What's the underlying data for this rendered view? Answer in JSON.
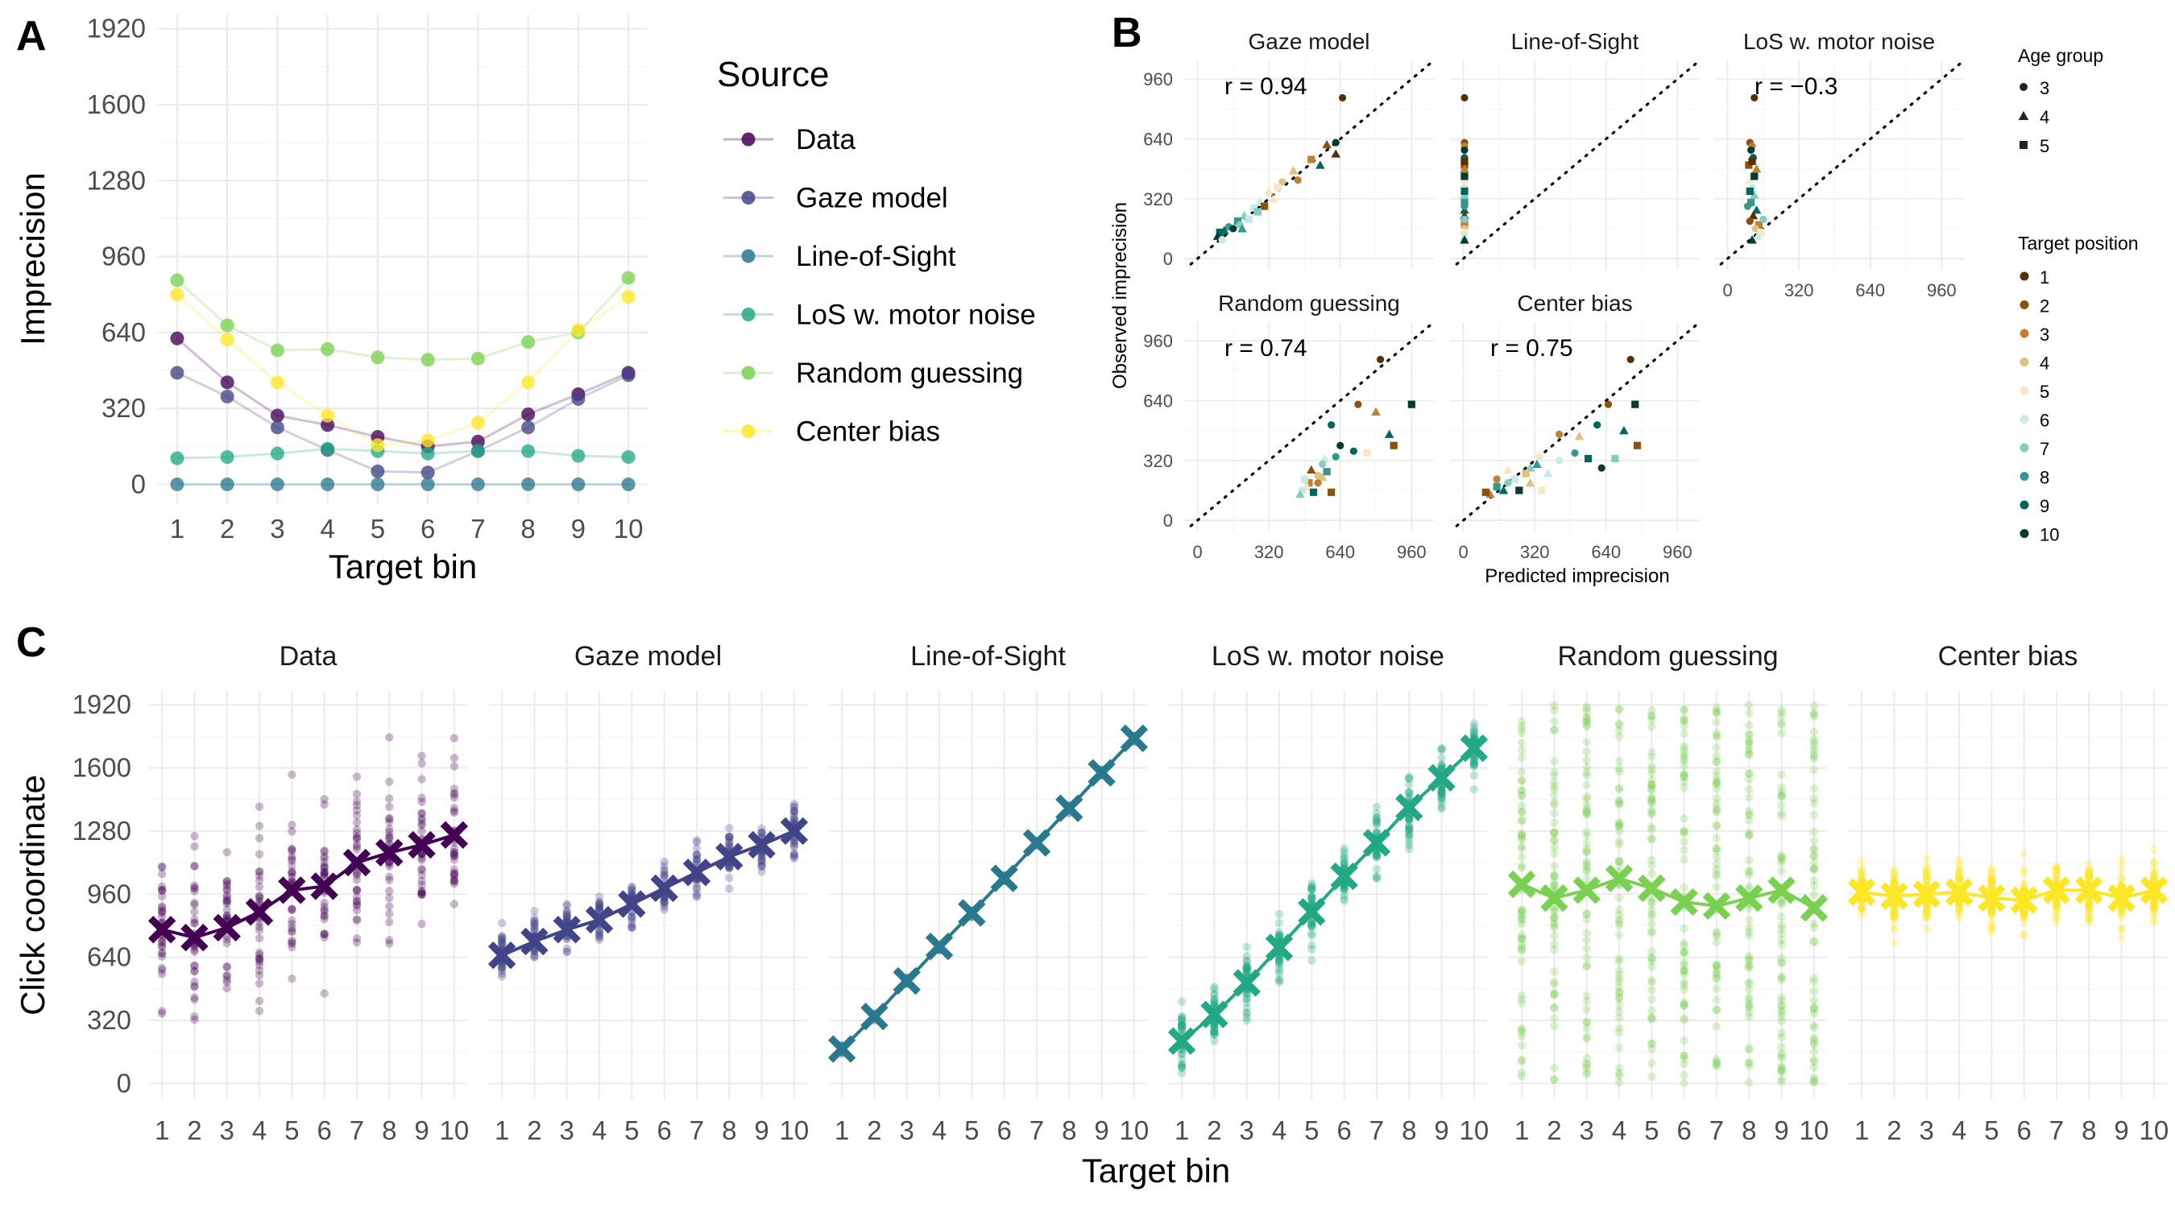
{
  "chart_data": [
    {
      "panel": "A",
      "type": "line",
      "xlabel": "Target bin",
      "ylabel": "Imprecision",
      "x": [
        1,
        2,
        3,
        4,
        5,
        6,
        7,
        8,
        9,
        10
      ],
      "yticks": [
        0,
        320,
        640,
        960,
        1280,
        1600,
        1920
      ],
      "ylim": [
        -80,
        1980
      ],
      "grid": true,
      "legend": {
        "title": "Source",
        "position": "right"
      },
      "series": [
        {
          "name": "Data",
          "color": "#440154",
          "values": [
            615,
            430,
            290,
            250,
            200,
            160,
            180,
            295,
            380,
            470
          ]
        },
        {
          "name": "Gaze model",
          "color": "#414487",
          "values": [
            470,
            370,
            240,
            145,
            55,
            50,
            140,
            240,
            360,
            460
          ]
        },
        {
          "name": "Line-of-Sight",
          "color": "#2a788e",
          "values": [
            0,
            0,
            0,
            0,
            0,
            0,
            0,
            0,
            0,
            0
          ]
        },
        {
          "name": "LoS w. motor noise",
          "color": "#22a884",
          "values": [
            110,
            115,
            130,
            150,
            140,
            130,
            140,
            140,
            120,
            115
          ]
        },
        {
          "name": "Random guessing",
          "color": "#7ad151",
          "values": [
            860,
            670,
            565,
            570,
            535,
            525,
            530,
            600,
            640,
            870
          ]
        },
        {
          "name": "Center bias",
          "color": "#fde725",
          "values": [
            800,
            610,
            430,
            290,
            165,
            185,
            260,
            430,
            650,
            790
          ]
        }
      ]
    },
    {
      "panel": "B",
      "type": "scatter",
      "xlabel": "Predicted imprecision",
      "ylabel": "Observed imprecision",
      "ticks": [
        0,
        320,
        640,
        960
      ],
      "lim": [
        -60,
        1060
      ],
      "grid": true,
      "reference_line": "identity (dotted)",
      "legends": [
        {
          "title": "Age group",
          "entries": [
            "3",
            "4",
            "5"
          ],
          "shapes": [
            "circle",
            "triangle",
            "square"
          ]
        },
        {
          "title": "Target position",
          "entries": [
            "1",
            "2",
            "3",
            "4",
            "5",
            "6",
            "7",
            "8",
            "9",
            "10"
          ],
          "colors": [
            "#543005",
            "#8c510a",
            "#bf812d",
            "#dfc27d",
            "#f6e8c3",
            "#c7eae5",
            "#80cdc1",
            "#35978f",
            "#01665e",
            "#003c30"
          ]
        }
      ],
      "facets": [
        {
          "title": "Gaze model",
          "r_label": "r = 0.94",
          "points": [
            [
              650,
              860,
              1,
              3
            ],
            [
              580,
              610,
              2,
              4
            ],
            [
              620,
              560,
              1,
              4
            ],
            [
              510,
              530,
              3,
              5
            ],
            [
              430,
              470,
              4,
              4
            ],
            [
              380,
              410,
              4,
              3
            ],
            [
              360,
              380,
              5,
              5
            ],
            [
              320,
              350,
              5,
              3
            ],
            [
              280,
              300,
              6,
              4
            ],
            [
              250,
              270,
              6,
              3
            ],
            [
              210,
              230,
              7,
              4
            ],
            [
              180,
              200,
              8,
              5
            ],
            [
              140,
              170,
              8,
              3
            ],
            [
              120,
              150,
              9,
              4
            ],
            [
              100,
              140,
              9,
              5
            ],
            [
              160,
              160,
              10,
              3
            ],
            [
              300,
              280,
              2,
              5
            ],
            [
              230,
              210,
              6,
              5
            ],
            [
              190,
              180,
              7,
              3
            ],
            [
              90,
              120,
              10,
              4
            ],
            [
              450,
              420,
              3,
              3
            ],
            [
              340,
              320,
              5,
              4
            ],
            [
              270,
              250,
              7,
              5
            ],
            [
              550,
              500,
              9,
              4
            ],
            [
              620,
              620,
              10,
              3
            ],
            [
              200,
              160,
              8,
              4
            ],
            [
              110,
              100,
              6,
              3
            ]
          ]
        },
        {
          "title": "Line-of-Sight",
          "r_label": "",
          "points": [
            [
              5,
              860,
              1,
              3
            ],
            [
              5,
              620,
              2,
              3
            ],
            [
              5,
              600,
              3,
              3
            ],
            [
              5,
              580,
              10,
              3
            ],
            [
              5,
              540,
              9,
              3
            ],
            [
              5,
              500,
              2,
              5
            ],
            [
              5,
              460,
              4,
              4
            ],
            [
              5,
              420,
              5,
              4
            ],
            [
              5,
              380,
              6,
              3
            ],
            [
              5,
              340,
              7,
              4
            ],
            [
              5,
              300,
              8,
              5
            ],
            [
              5,
              260,
              9,
              4
            ],
            [
              5,
              230,
              1,
              4
            ],
            [
              5,
              200,
              2,
              3
            ],
            [
              5,
              180,
              3,
              5
            ],
            [
              5,
              160,
              4,
              3
            ],
            [
              5,
              140,
              5,
              5
            ],
            [
              5,
              120,
              6,
              4
            ],
            [
              5,
              100,
              10,
              4
            ],
            [
              5,
              210,
              7,
              3
            ],
            [
              5,
              280,
              8,
              3
            ],
            [
              5,
              360,
              9,
              5
            ],
            [
              5,
              440,
              10,
              5
            ],
            [
              5,
              520,
              1,
              5
            ],
            [
              5,
              480,
              3,
              4
            ]
          ]
        },
        {
          "title": "LoS w. motor noise",
          "r_label": "r = −0.3",
          "points": [
            [
              120,
              860,
              1,
              3
            ],
            [
              100,
              620,
              2,
              3
            ],
            [
              110,
              600,
              3,
              3
            ],
            [
              105,
              580,
              10,
              3
            ],
            [
              115,
              540,
              9,
              3
            ],
            [
              95,
              500,
              2,
              5
            ],
            [
              120,
              460,
              4,
              4
            ],
            [
              100,
              420,
              5,
              4
            ],
            [
              110,
              380,
              6,
              3
            ],
            [
              120,
              340,
              7,
              4
            ],
            [
              105,
              300,
              8,
              5
            ],
            [
              130,
              260,
              9,
              4
            ],
            [
              115,
              230,
              1,
              4
            ],
            [
              100,
              200,
              2,
              3
            ],
            [
              140,
              180,
              3,
              5
            ],
            [
              125,
              160,
              4,
              3
            ],
            [
              150,
              140,
              5,
              5
            ],
            [
              135,
              120,
              6,
              4
            ],
            [
              110,
              100,
              10,
              4
            ],
            [
              160,
              210,
              7,
              3
            ],
            [
              90,
              280,
              8,
              3
            ],
            [
              100,
              360,
              9,
              5
            ],
            [
              120,
              440,
              10,
              5
            ],
            [
              110,
              520,
              1,
              5
            ],
            [
              130,
              480,
              3,
              4
            ]
          ]
        },
        {
          "title": "Random guessing",
          "r_label": "r = 0.74",
          "points": [
            [
              820,
              860,
              1,
              3
            ],
            [
              720,
              620,
              2,
              3
            ],
            [
              800,
              580,
              3,
              4
            ],
            [
              960,
              620,
              10,
              5
            ],
            [
              860,
              460,
              9,
              4
            ],
            [
              880,
              400,
              2,
              5
            ],
            [
              760,
              360,
              5,
              5
            ],
            [
              600,
              510,
              9,
              3
            ],
            [
              640,
              400,
              10,
              3
            ],
            [
              570,
              330,
              6,
              4
            ],
            [
              560,
              300,
              7,
              3
            ],
            [
              580,
              260,
              8,
              5
            ],
            [
              540,
              240,
              4,
              3
            ],
            [
              500,
              200,
              3,
              5
            ],
            [
              490,
              180,
              5,
              4
            ],
            [
              470,
              160,
              6,
              3
            ],
            [
              460,
              140,
              7,
              4
            ],
            [
              520,
              150,
              9,
              5
            ],
            [
              560,
              230,
              4,
              4
            ],
            [
              540,
              200,
              3,
              3
            ],
            [
              620,
              340,
              8,
              3
            ],
            [
              700,
              370,
              9,
              3
            ],
            [
              510,
              270,
              2,
              4
            ],
            [
              600,
              150,
              2,
              5
            ],
            [
              480,
              220,
              6,
              5
            ]
          ]
        },
        {
          "title": "Center bias",
          "r_label": "r = 0.75",
          "points": [
            [
              750,
              860,
              1,
              3
            ],
            [
              650,
              620,
              2,
              3
            ],
            [
              770,
              620,
              10,
              5
            ],
            [
              720,
              480,
              9,
              4
            ],
            [
              780,
              400,
              2,
              5
            ],
            [
              600,
              510,
              9,
              3
            ],
            [
              520,
              450,
              4,
              4
            ],
            [
              430,
              460,
              3,
              3
            ],
            [
              500,
              360,
              8,
              3
            ],
            [
              430,
              320,
              6,
              3
            ],
            [
              340,
              340,
              5,
              3
            ],
            [
              330,
              300,
              8,
              4
            ],
            [
              300,
              280,
              7,
              4
            ],
            [
              280,
              250,
              4,
              5
            ],
            [
              230,
              220,
              6,
              5
            ],
            [
              200,
              200,
              7,
              3
            ],
            [
              150,
              180,
              8,
              5
            ],
            [
              180,
              160,
              9,
              4
            ],
            [
              250,
              160,
              10,
              5
            ],
            [
              120,
              140,
              3,
              4
            ],
            [
              100,
              150,
              2,
              5
            ],
            [
              350,
              160,
              5,
              5
            ],
            [
              300,
              200,
              4,
              4
            ],
            [
              380,
              250,
              6,
              4
            ],
            [
              560,
              330,
              9,
              5
            ],
            [
              620,
              280,
              10,
              3
            ],
            [
              680,
              330,
              7,
              5
            ],
            [
              150,
              220,
              3,
              3
            ],
            [
              200,
              270,
              5,
              4
            ]
          ]
        }
      ]
    },
    {
      "panel": "C",
      "type": "scatter",
      "xlabel": "Target bin",
      "ylabel": "Click coordinate",
      "x": [
        1,
        2,
        3,
        4,
        5,
        6,
        7,
        8,
        9,
        10
      ],
      "yticks": [
        0,
        320,
        640,
        960,
        1280,
        1600,
        1920
      ],
      "ylim": [
        -80,
        1990
      ],
      "grid": true,
      "facets": [
        {
          "title": "Data",
          "color": "#440154",
          "means": [
            780,
            740,
            790,
            870,
            980,
            1000,
            1120,
            1170,
            1210,
            1260
          ]
        },
        {
          "title": "Gaze model",
          "color": "#414487",
          "means": [
            650,
            720,
            780,
            830,
            910,
            990,
            1070,
            1150,
            1210,
            1280
          ]
        },
        {
          "title": "Line-of-Sight",
          "color": "#2a788e",
          "means": [
            175,
            340,
            520,
            695,
            865,
            1040,
            1220,
            1395,
            1575,
            1750
          ]
        },
        {
          "title": "LoS w. motor noise",
          "color": "#22a884",
          "means": [
            215,
            350,
            510,
            690,
            870,
            1050,
            1220,
            1400,
            1550,
            1700
          ]
        },
        {
          "title": "Random guessing",
          "color": "#7ad151",
          "means": [
            1010,
            940,
            980,
            1040,
            990,
            920,
            900,
            940,
            980,
            890
          ]
        },
        {
          "title": "Center bias",
          "color": "#fde725",
          "means": [
            970,
            950,
            960,
            970,
            940,
            930,
            980,
            980,
            940,
            980
          ]
        }
      ]
    }
  ]
}
